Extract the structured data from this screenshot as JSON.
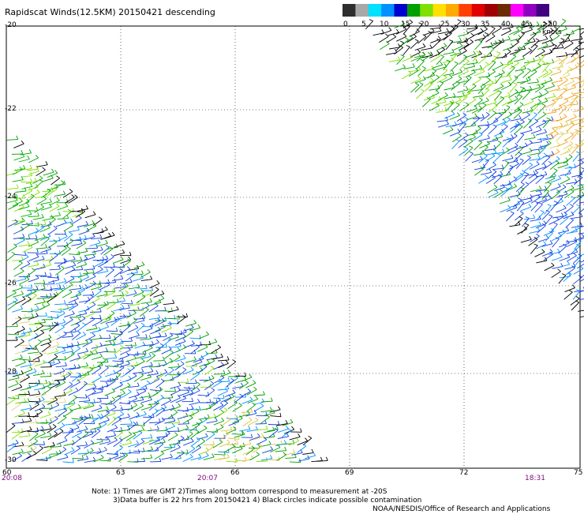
{
  "title": "Rapidscat Winds(12.5KM) 20150421 descending",
  "legend": {
    "labels": [
      "0",
      "5",
      "10",
      "15",
      "20",
      "25",
      "30",
      "35",
      "40",
      "45",
      ">50 knots"
    ],
    "colors": [
      "#2e2e2e",
      "#a8a8a8",
      "#00e0ff",
      "#0090ff",
      "#0000d0",
      "#00a000",
      "#80e000",
      "#ffe000",
      "#ffaa00",
      "#ff4000",
      "#e00000",
      "#a00000",
      "#6b2a00",
      "#ff00ff",
      "#9000c0",
      "#400080"
    ]
  },
  "y_axis": {
    "labels": [
      "-20",
      "-22",
      "-24",
      "-26",
      "-28",
      "-30"
    ]
  },
  "x_axis": {
    "labels": [
      "60",
      "63",
      "66",
      "69",
      "72",
      "75"
    ]
  },
  "times": [
    "20:08",
    "20:07",
    "18:31"
  ],
  "notes": {
    "line1": "Note: 1) Times are GMT 2)Times along bottom correspond to measurement at -20S",
    "line2": "3)Data buffer is 22 hrs from 20150421 4) Black circles indicate possible contamination",
    "credit": "NOAA/NESDIS/Office of Research and Applications"
  }
}
